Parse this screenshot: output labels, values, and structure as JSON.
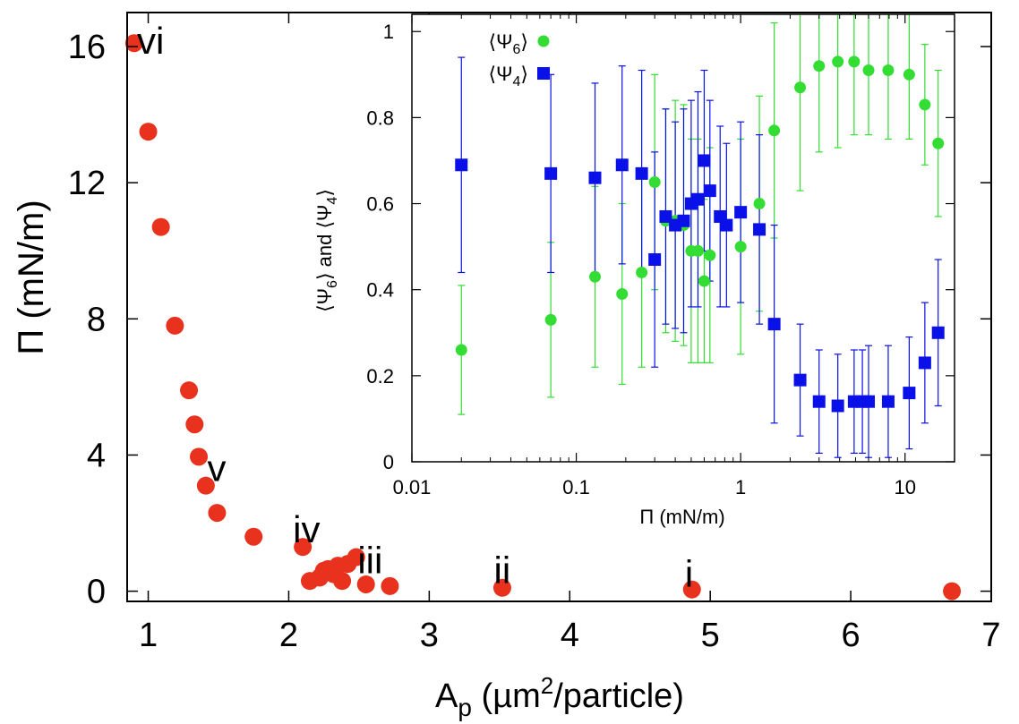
{
  "chart_data": [
    {
      "type": "scatter",
      "xlabel": "A",
      "xlabel_sub": "p",
      "xlabel_rest_pre": " (µm",
      "xlabel_sup": "2",
      "xlabel_rest_post": "/particle)",
      "ylabel": "Π (mN/m)",
      "xlim": [
        0.85,
        7.0
      ],
      "ylim": [
        -0.3,
        17.0
      ],
      "xticks": [
        1,
        2,
        3,
        4,
        5,
        6,
        7
      ],
      "yticks": [
        0,
        4,
        8,
        12,
        16
      ],
      "xtick_labels": [
        "1",
        "2",
        "3",
        "4",
        "5",
        "6",
        "7"
      ],
      "ytick_labels": [
        "0",
        "4",
        "8",
        "12",
        "16"
      ],
      "series": [
        {
          "color": "#e8321e",
          "points": [
            [
              0.9,
              16.1
            ],
            [
              1.0,
              13.5
            ],
            [
              1.09,
              10.7
            ],
            [
              1.19,
              7.8
            ],
            [
              1.29,
              5.9
            ],
            [
              1.33,
              4.9
            ],
            [
              1.36,
              3.95
            ],
            [
              1.41,
              3.1
            ],
            [
              1.49,
              2.3
            ],
            [
              1.75,
              1.6
            ],
            [
              2.1,
              1.3
            ],
            [
              2.15,
              0.3
            ],
            [
              2.22,
              0.4
            ],
            [
              2.25,
              0.6
            ],
            [
              2.28,
              0.65
            ],
            [
              2.32,
              0.5
            ],
            [
              2.35,
              0.75
            ],
            [
              2.38,
              0.3
            ],
            [
              2.42,
              0.8
            ],
            [
              2.48,
              1.0
            ],
            [
              2.55,
              0.2
            ],
            [
              2.72,
              0.15
            ],
            [
              3.52,
              0.1
            ],
            [
              4.87,
              0.05
            ],
            [
              6.72,
              0.0
            ]
          ]
        }
      ],
      "annotations": [
        {
          "text": "vi",
          "x": 0.92,
          "y": 16.1
        },
        {
          "text": "v",
          "x": 1.42,
          "y": 3.55
        },
        {
          "text": "iv",
          "x": 2.03,
          "y": 1.75
        },
        {
          "text": "iii",
          "x": 2.49,
          "y": 0.85
        },
        {
          "text": "ii",
          "x": 3.46,
          "y": 0.55
        },
        {
          "text": "i",
          "x": 4.82,
          "y": 0.45
        }
      ]
    },
    {
      "type": "scatter",
      "xscale": "log",
      "xlabel": "Π (mN/m)",
      "ylabel": "⟨Ψ6⟩ and ⟨Ψ4⟩",
      "ylabel_parts": [
        "⟨Ψ",
        "6",
        "⟩ and ⟨Ψ",
        "4",
        "⟩"
      ],
      "xlim": [
        0.01,
        20
      ],
      "ylim": [
        0,
        1.04
      ],
      "xticks": [
        0.01,
        0.1,
        1,
        10
      ],
      "yticks": [
        0,
        0.2,
        0.4,
        0.6,
        0.8,
        1
      ],
      "xtick_labels": [
        "0.01",
        "0.1",
        "1",
        "10"
      ],
      "ytick_labels": [
        "0",
        "0.2",
        "0.4",
        "0.6",
        "0.8",
        "1"
      ],
      "legend_position": "top-left",
      "series": [
        {
          "name": "⟨Ψ6⟩",
          "name_parts": [
            "⟨Ψ",
            "6",
            "⟩"
          ],
          "marker": "circle",
          "color": "#33dd33",
          "points": [
            [
              0.02,
              0.26,
              0.15
            ],
            [
              0.07,
              0.33,
              0.18
            ],
            [
              0.13,
              0.43,
              0.21
            ],
            [
              0.19,
              0.39,
              0.21
            ],
            [
              0.25,
              0.44,
              0.22
            ],
            [
              0.3,
              0.65,
              0.25
            ],
            [
              0.35,
              0.56,
              0.26
            ],
            [
              0.4,
              0.56,
              0.28
            ],
            [
              0.45,
              0.55,
              0.28
            ],
            [
              0.5,
              0.49,
              0.26
            ],
            [
              0.55,
              0.49,
              0.26
            ],
            [
              0.6,
              0.42,
              0.19
            ],
            [
              0.65,
              0.48,
              0.25
            ],
            [
              1.0,
              0.5,
              0.25
            ],
            [
              1.3,
              0.6,
              0.25
            ],
            [
              1.6,
              0.77,
              0.25
            ],
            [
              2.3,
              0.87,
              0.24
            ],
            [
              3.0,
              0.92,
              0.2
            ],
            [
              3.9,
              0.93,
              0.2
            ],
            [
              4.9,
              0.93,
              0.17
            ],
            [
              6.0,
              0.91,
              0.15
            ],
            [
              7.9,
              0.91,
              0.16
            ],
            [
              10.6,
              0.9,
              0.15
            ],
            [
              13.2,
              0.83,
              0.14
            ],
            [
              15.9,
              0.74,
              0.17
            ]
          ]
        },
        {
          "name": "⟨Ψ4⟩",
          "name_parts": [
            "⟨Ψ",
            "4",
            "⟩"
          ],
          "marker": "square",
          "color": "#0a10e8",
          "points": [
            [
              0.02,
              0.69,
              0.25
            ],
            [
              0.07,
              0.67,
              0.23
            ],
            [
              0.13,
              0.66,
              0.22
            ],
            [
              0.19,
              0.69,
              0.23
            ],
            [
              0.25,
              0.67,
              0.24
            ],
            [
              0.3,
              0.47,
              0.25
            ],
            [
              0.35,
              0.57,
              0.25
            ],
            [
              0.4,
              0.55,
              0.24
            ],
            [
              0.45,
              0.56,
              0.26
            ],
            [
              0.5,
              0.6,
              0.24
            ],
            [
              0.55,
              0.61,
              0.25
            ],
            [
              0.6,
              0.7,
              0.21
            ],
            [
              0.65,
              0.63,
              0.21
            ],
            [
              0.75,
              0.57,
              0.21
            ],
            [
              0.82,
              0.55,
              0.19
            ],
            [
              1.0,
              0.58,
              0.21
            ],
            [
              1.3,
              0.54,
              0.22
            ],
            [
              1.6,
              0.32,
              0.23
            ],
            [
              2.3,
              0.19,
              0.13
            ],
            [
              3.0,
              0.14,
              0.12
            ],
            [
              3.9,
              0.13,
              0.12
            ],
            [
              4.9,
              0.14,
              0.12
            ],
            [
              5.5,
              0.14,
              0.12
            ],
            [
              6.0,
              0.14,
              0.13
            ],
            [
              7.9,
              0.14,
              0.13
            ],
            [
              10.6,
              0.16,
              0.13
            ],
            [
              13.2,
              0.23,
              0.14
            ],
            [
              15.9,
              0.3,
              0.17
            ]
          ]
        }
      ]
    }
  ]
}
